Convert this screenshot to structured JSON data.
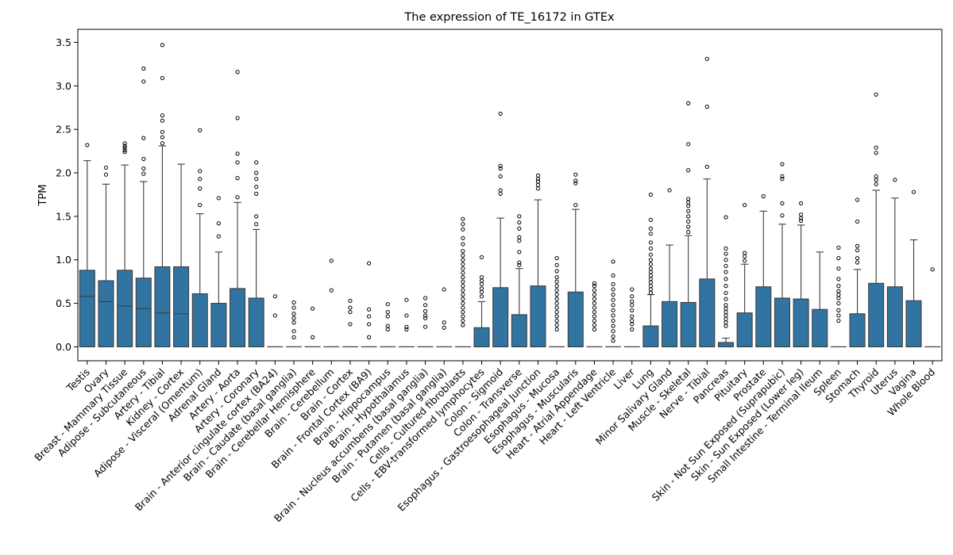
{
  "chart_data": {
    "type": "box",
    "title": "The expression of TE_16172 in GTEx",
    "xlabel": "",
    "ylabel": "TPM",
    "ylim": [
      -0.16,
      3.65
    ],
    "yticks": [
      0.0,
      0.5,
      1.0,
      1.5,
      2.0,
      2.5,
      3.0,
      3.5
    ],
    "ytick_labels": [
      "0.0",
      "0.5",
      "1.0",
      "1.5",
      "2.0",
      "2.5",
      "3.0",
      "3.5"
    ],
    "box_color": "#3274a1",
    "grid": false,
    "categories": [
      {
        "name": "Testis",
        "q1": 0,
        "median": 0.58,
        "q3": 0.88,
        "whisker_high": 2.14,
        "outliers": [
          2.32
        ]
      },
      {
        "name": "Ovary",
        "q1": 0,
        "median": 0.52,
        "q3": 0.76,
        "whisker_high": 1.87,
        "outliers": [
          1.98,
          2.06
        ]
      },
      {
        "name": "Breast - Mammary Tissue",
        "q1": 0,
        "median": 0.47,
        "q3": 0.88,
        "whisker_high": 2.09,
        "outliers": [
          2.24,
          2.26,
          2.29,
          2.31,
          2.34
        ]
      },
      {
        "name": "Adipose - Subcutaneous",
        "q1": 0,
        "median": 0.44,
        "q3": 0.79,
        "whisker_high": 1.9,
        "outliers": [
          1.99,
          2.05,
          2.16,
          2.4,
          3.05,
          3.2
        ]
      },
      {
        "name": "Artery - Tibial",
        "q1": 0,
        "median": 0.39,
        "q3": 0.92,
        "whisker_high": 2.31,
        "outliers": [
          2.34,
          2.41,
          2.47,
          2.6,
          2.66,
          3.09,
          3.47
        ]
      },
      {
        "name": "Kidney - Cortex",
        "q1": 0,
        "median": 0.38,
        "q3": 0.92,
        "whisker_high": 2.1,
        "outliers": []
      },
      {
        "name": "Adipose - Visceral (Omentum)",
        "q1": 0,
        "median": 0.0,
        "q3": 0.61,
        "whisker_high": 1.53,
        "outliers": [
          1.63,
          1.82,
          1.93,
          2.02,
          2.49
        ]
      },
      {
        "name": "Adrenal Gland",
        "q1": 0,
        "median": 0.0,
        "q3": 0.5,
        "whisker_high": 1.09,
        "outliers": [
          1.27,
          1.42,
          1.71
        ]
      },
      {
        "name": "Artery - Aorta",
        "q1": 0,
        "median": 0.0,
        "q3": 0.67,
        "whisker_high": 1.66,
        "outliers": [
          1.72,
          1.94,
          2.12,
          2.22,
          2.63,
          3.16
        ]
      },
      {
        "name": "Artery - Coronary",
        "q1": 0,
        "median": 0.0,
        "q3": 0.56,
        "whisker_high": 1.35,
        "outliers": [
          1.41,
          1.5,
          1.76,
          1.84,
          1.93,
          2.0,
          2.12
        ]
      },
      {
        "name": "Brain - Anterior cingulate cortex (BA24)",
        "q1": 0,
        "median": 0.0,
        "q3": 0.0,
        "whisker_high": 0.0,
        "outliers": [
          0.36,
          0.58
        ]
      },
      {
        "name": "Brain - Caudate (basal ganglia)",
        "q1": 0,
        "median": 0.0,
        "q3": 0.0,
        "whisker_high": 0.0,
        "outliers": [
          0.11,
          0.18,
          0.28,
          0.33,
          0.38,
          0.45,
          0.51
        ]
      },
      {
        "name": "Brain - Cerebellar Hemisphere",
        "q1": 0,
        "median": 0.0,
        "q3": 0.0,
        "whisker_high": 0.0,
        "outliers": [
          0.11,
          0.44
        ]
      },
      {
        "name": "Brain - Cerebellum",
        "q1": 0,
        "median": 0.0,
        "q3": 0.0,
        "whisker_high": 0.0,
        "outliers": [
          0.65,
          0.99
        ]
      },
      {
        "name": "Brain - Cortex",
        "q1": 0,
        "median": 0.0,
        "q3": 0.0,
        "whisker_high": 0.0,
        "outliers": [
          0.26,
          0.4,
          0.45,
          0.53
        ]
      },
      {
        "name": "Brain - Frontal Cortex (BA9)",
        "q1": 0,
        "median": 0.0,
        "q3": 0.0,
        "whisker_high": 0.0,
        "outliers": [
          0.11,
          0.26,
          0.35,
          0.43,
          0.96
        ]
      },
      {
        "name": "Brain - Hippocampus",
        "q1": 0,
        "median": 0.0,
        "q3": 0.0,
        "whisker_high": 0.0,
        "outliers": [
          0.2,
          0.24,
          0.35,
          0.4,
          0.49
        ]
      },
      {
        "name": "Brain - Hypothalamus",
        "q1": 0,
        "median": 0.0,
        "q3": 0.0,
        "whisker_high": 0.0,
        "outliers": [
          0.2,
          0.23,
          0.36,
          0.54
        ]
      },
      {
        "name": "Brain - Nucleus accumbens (basal ganglia)",
        "q1": 0,
        "median": 0.0,
        "q3": 0.0,
        "whisker_high": 0.0,
        "outliers": [
          0.23,
          0.33,
          0.36,
          0.41,
          0.48,
          0.56
        ]
      },
      {
        "name": "Brain - Putamen (basal ganglia)",
        "q1": 0,
        "median": 0.0,
        "q3": 0.0,
        "whisker_high": 0.0,
        "outliers": [
          0.22,
          0.28,
          0.66
        ]
      },
      {
        "name": "Cells - Cultured fibroblasts",
        "q1": 0,
        "median": 0.0,
        "q3": 0.0,
        "whisker_high": 0.0,
        "outliers": [
          0.25,
          0.3,
          0.35,
          0.4,
          0.45,
          0.5,
          0.55,
          0.6,
          0.65,
          0.7,
          0.75,
          0.8,
          0.85,
          0.9,
          0.95,
          1.0,
          1.05,
          1.1,
          1.18,
          1.25,
          1.35,
          1.41,
          1.47
        ]
      },
      {
        "name": "Cells - EBV-transformed lymphocytes",
        "q1": 0,
        "median": 0.0,
        "q3": 0.22,
        "whisker_high": 0.52,
        "outliers": [
          0.58,
          0.63,
          0.67,
          0.72,
          0.76,
          0.8,
          1.03
        ]
      },
      {
        "name": "Colon - Sigmoid",
        "q1": 0,
        "median": 0.0,
        "q3": 0.68,
        "whisker_high": 1.48,
        "outliers": [
          1.76,
          1.8,
          1.96,
          2.05,
          2.08,
          2.68
        ]
      },
      {
        "name": "Colon - Transverse",
        "q1": 0,
        "median": 0.0,
        "q3": 0.37,
        "whisker_high": 0.9,
        "outliers": [
          0.94,
          0.97,
          1.09,
          1.22,
          1.26,
          1.36,
          1.43,
          1.5
        ]
      },
      {
        "name": "Esophagus - Gastroesophageal Junction",
        "q1": 0,
        "median": 0.0,
        "q3": 0.7,
        "whisker_high": 1.69,
        "outliers": [
          1.82,
          1.86,
          1.9,
          1.93,
          1.97
        ]
      },
      {
        "name": "Esophagus - Mucosa",
        "q1": 0,
        "median": 0.0,
        "q3": 0.0,
        "whisker_high": 0.0,
        "outliers": [
          0.2,
          0.25,
          0.3,
          0.35,
          0.4,
          0.45,
          0.5,
          0.55,
          0.6,
          0.65,
          0.7,
          0.75,
          0.8,
          0.87,
          0.94,
          1.02
        ]
      },
      {
        "name": "Esophagus - Muscularis",
        "q1": 0,
        "median": 0.0,
        "q3": 0.63,
        "whisker_high": 1.58,
        "outliers": [
          1.63,
          1.88,
          1.91,
          1.98
        ]
      },
      {
        "name": "Heart - Atrial Appendage",
        "q1": 0,
        "median": 0.0,
        "q3": 0.0,
        "whisker_high": 0.0,
        "outliers": [
          0.2,
          0.25,
          0.3,
          0.35,
          0.4,
          0.45,
          0.5,
          0.55,
          0.6,
          0.65,
          0.7,
          0.73
        ]
      },
      {
        "name": "Heart - Left Ventricle",
        "q1": 0,
        "median": 0.0,
        "q3": 0.0,
        "whisker_high": 0.0,
        "outliers": [
          0.07,
          0.12,
          0.18,
          0.24,
          0.3,
          0.36,
          0.42,
          0.48,
          0.54,
          0.6,
          0.66,
          0.72,
          0.82,
          0.98
        ]
      },
      {
        "name": "Liver",
        "q1": 0,
        "median": 0.0,
        "q3": 0.0,
        "whisker_high": 0.0,
        "outliers": [
          0.2,
          0.26,
          0.3,
          0.35,
          0.42,
          0.48,
          0.52,
          0.58,
          0.66
        ]
      },
      {
        "name": "Lung",
        "q1": 0,
        "median": 0.0,
        "q3": 0.24,
        "whisker_high": 0.6,
        "outliers": [
          0.62,
          0.66,
          0.7,
          0.74,
          0.78,
          0.82,
          0.86,
          0.9,
          0.95,
          1.0,
          1.06,
          1.13,
          1.2,
          1.3,
          1.36,
          1.46,
          1.75
        ]
      },
      {
        "name": "Minor Salivary Gland",
        "q1": 0,
        "median": 0.0,
        "q3": 0.52,
        "whisker_high": 1.17,
        "outliers": [
          1.8
        ]
      },
      {
        "name": "Muscle - Skeletal",
        "q1": 0,
        "median": 0.0,
        "q3": 0.51,
        "whisker_high": 1.28,
        "outliers": [
          1.32,
          1.38,
          1.44,
          1.5,
          1.56,
          1.62,
          1.66,
          1.7,
          2.03,
          2.33,
          2.8
        ]
      },
      {
        "name": "Nerve - Tibial",
        "q1": 0,
        "median": 0.0,
        "q3": 0.78,
        "whisker_high": 1.93,
        "outliers": [
          2.07,
          2.76,
          3.31
        ]
      },
      {
        "name": "Pancreas",
        "q1": 0,
        "median": 0.0,
        "q3": 0.05,
        "whisker_high": 0.1,
        "outliers": [
          0.24,
          0.28,
          0.32,
          0.36,
          0.4,
          0.44,
          0.48,
          0.55,
          0.62,
          0.7,
          0.78,
          0.86,
          0.93,
          1.0,
          1.07,
          1.13,
          1.49
        ]
      },
      {
        "name": "Pituitary",
        "q1": 0,
        "median": 0.0,
        "q3": 0.39,
        "whisker_high": 0.95,
        "outliers": [
          0.99,
          1.04,
          1.08,
          1.63
        ]
      },
      {
        "name": "Prostate",
        "q1": 0,
        "median": 0.0,
        "q3": 0.69,
        "whisker_high": 1.56,
        "outliers": [
          1.73
        ]
      },
      {
        "name": "Skin - Not Sun Exposed (Suprapubic)",
        "q1": 0,
        "median": 0.0,
        "q3": 0.56,
        "whisker_high": 1.41,
        "outliers": [
          1.51,
          1.65,
          1.93,
          1.96,
          2.1
        ]
      },
      {
        "name": "Skin - Sun Exposed (Lower leg)",
        "q1": 0,
        "median": 0.0,
        "q3": 0.55,
        "whisker_high": 1.4,
        "outliers": [
          1.45,
          1.48,
          1.52,
          1.65
        ]
      },
      {
        "name": "Small Intestine - Terminal Ileum",
        "q1": 0,
        "median": 0.0,
        "q3": 0.43,
        "whisker_high": 1.09,
        "outliers": []
      },
      {
        "name": "Spleen",
        "q1": 0,
        "median": 0.0,
        "q3": 0.0,
        "whisker_high": 0.0,
        "outliers": [
          0.3,
          0.36,
          0.42,
          0.5,
          0.56,
          0.6,
          0.64,
          0.7,
          0.78,
          0.9,
          1.02,
          1.14
        ]
      },
      {
        "name": "Stomach",
        "q1": 0,
        "median": 0.0,
        "q3": 0.38,
        "whisker_high": 0.89,
        "outliers": [
          0.97,
          1.02,
          1.11,
          1.16,
          1.44,
          1.69
        ]
      },
      {
        "name": "Thyroid",
        "q1": 0,
        "median": 0.0,
        "q3": 0.73,
        "whisker_high": 1.8,
        "outliers": [
          1.87,
          1.92,
          1.96,
          2.23,
          2.29,
          2.9
        ]
      },
      {
        "name": "Uterus",
        "q1": 0,
        "median": 0.0,
        "q3": 0.69,
        "whisker_high": 1.71,
        "outliers": [
          1.92
        ]
      },
      {
        "name": "Vagina",
        "q1": 0,
        "median": 0.0,
        "q3": 0.53,
        "whisker_high": 1.23,
        "outliers": [
          1.78
        ]
      },
      {
        "name": "Whole Blood",
        "q1": 0,
        "median": 0.0,
        "q3": 0.0,
        "whisker_high": 0.0,
        "outliers": [
          0.89
        ]
      }
    ]
  }
}
